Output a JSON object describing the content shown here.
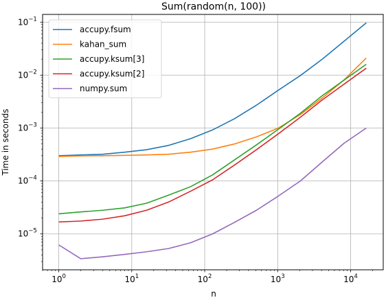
{
  "chart_data": {
    "type": "line",
    "title": "Sum(random(n, 100))",
    "xlabel": "n",
    "ylabel": "Time in seconds",
    "xscale": "log",
    "yscale": "log",
    "xlim": [
      0.6,
      28000
    ],
    "ylim": [
      2.1e-06,
      0.14
    ],
    "grid": true,
    "legend_position": "upper-left",
    "x": [
      1,
      2,
      4,
      8,
      16,
      32,
      64,
      128,
      256,
      512,
      1024,
      2048,
      4096,
      8192,
      16384
    ],
    "x_ticks": [
      {
        "value": 1,
        "base": "10",
        "exp": "0"
      },
      {
        "value": 10,
        "base": "10",
        "exp": "1"
      },
      {
        "value": 100,
        "base": "10",
        "exp": "2"
      },
      {
        "value": 1000,
        "base": "10",
        "exp": "3"
      },
      {
        "value": 10000,
        "base": "10",
        "exp": "4"
      }
    ],
    "y_ticks": [
      {
        "value": 1e-05,
        "base": "10",
        "exp": "−5"
      },
      {
        "value": 0.0001,
        "base": "10",
        "exp": "−4"
      },
      {
        "value": 0.001,
        "base": "10",
        "exp": "−3"
      },
      {
        "value": 0.01,
        "base": "10",
        "exp": "−2"
      },
      {
        "value": 0.1,
        "base": "10",
        "exp": "−1"
      }
    ],
    "series": [
      {
        "name": "accupy.fsum",
        "color": "#1f77b4",
        "values": [
          0.0003,
          0.00031,
          0.00032,
          0.00035,
          0.00039,
          0.00047,
          0.00063,
          0.00092,
          0.0015,
          0.0027,
          0.0052,
          0.0098,
          0.02,
          0.044,
          0.097
        ]
      },
      {
        "name": "kahan_sum",
        "color": "#ff7f0e",
        "values": [
          0.00029,
          0.000298,
          0.0003,
          0.000305,
          0.00031,
          0.00032,
          0.00035,
          0.0004,
          0.0005,
          0.00068,
          0.001,
          0.0018,
          0.0037,
          0.0082,
          0.021
        ]
      },
      {
        "name": "accupy.ksum[3]",
        "color": "#2ca02c",
        "values": [
          2.4e-05,
          2.6e-05,
          2.8e-05,
          3.1e-05,
          3.8e-05,
          5.4e-05,
          7.8e-05,
          0.00013,
          0.00025,
          0.00048,
          0.00095,
          0.0019,
          0.0041,
          0.0081,
          0.016
        ]
      },
      {
        "name": "accupy.ksum[2]",
        "color": "#d62728",
        "values": [
          1.68e-05,
          1.75e-05,
          1.9e-05,
          2.2e-05,
          2.8e-05,
          4e-05,
          6.4e-05,
          0.000105,
          0.0002,
          0.00039,
          0.00078,
          0.0016,
          0.0034,
          0.0068,
          0.0135
        ]
      },
      {
        "name": "numpy.sum",
        "color": "#9467bd",
        "values": [
          6.2e-06,
          3.4e-06,
          3.7e-06,
          4.1e-06,
          4.6e-06,
          5.3e-06,
          6.8e-06,
          1e-05,
          1.65e-05,
          2.8e-05,
          5.2e-05,
          0.0001,
          0.00023,
          0.00052,
          0.001
        ]
      }
    ]
  }
}
